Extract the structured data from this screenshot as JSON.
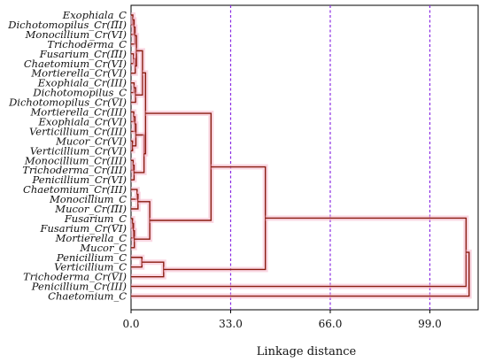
{
  "chart_data": {
    "type": "dendrogram",
    "orientation": "horizontal",
    "title": "",
    "xlabel": "Linkage distance",
    "xlim": [
      0,
      115
    ],
    "ticks": [
      0.0,
      33.0,
      66.0,
      99.0
    ],
    "tick_labels": [
      "0.0",
      "33.0",
      "66.0",
      "99.0"
    ],
    "cut_lines": [
      33.0,
      66.0,
      99.0
    ],
    "cut_line_color": "#8a2be2",
    "link_color": "#8a1c10",
    "leaves": [
      "Exophiala_C",
      "Dichotomopilus_Cr(III)",
      "Monocillium_Cr(VI)",
      "Trichoderma_C",
      "Fusarium_Cr(III)",
      "Chaetomium_Cr(VI)",
      "Mortierella_Cr(VI)",
      "Exophiala_Cr(III)",
      "Dichotomopilus_C",
      "Dichotomopilus_Cr(VI)",
      "Mortierella_Cr(III)",
      "Exophiala_Cr(VI)",
      "Verticillium_Cr(III)",
      "Mucor_Cr(VI)",
      "Verticillium_Cr(VI)",
      "Monocillium_Cr(III)",
      "Trichoderma_Cr(III)",
      "Penicillium_Cr(VI)",
      "Chaetomium_Cr(III)",
      "Monocillium_C",
      "Mucor_Cr(III)",
      "Fusarium_C",
      "Fusarium_Cr(VI)",
      "Mortierella_C",
      "Mucor_C",
      "Penicillium_C",
      "Verticillium_C",
      "Trichoderma_Cr(VI)",
      "Penicillium_Cr(III)",
      "Chaetomium_C"
    ],
    "merges": [
      {
        "a": 0,
        "b": 1,
        "height": 0.6
      },
      {
        "a": 30,
        "b": 2,
        "height": 1.0
      },
      {
        "a": 31,
        "b": 3,
        "height": 1.3
      },
      {
        "a": 4,
        "b": 5,
        "height": 0.8
      },
      {
        "a": 33,
        "b": 6,
        "height": 1.4
      },
      {
        "a": 32,
        "b": 34,
        "height": 1.8
      },
      {
        "a": 7,
        "b": 8,
        "height": 1.0
      },
      {
        "a": 36,
        "b": 9,
        "height": 1.5
      },
      {
        "a": 35,
        "b": 37,
        "height": 3.8
      },
      {
        "a": 10,
        "b": 11,
        "height": 0.9
      },
      {
        "a": 39,
        "b": 12,
        "height": 1.3
      },
      {
        "a": 13,
        "b": 14,
        "height": 0.5
      },
      {
        "a": 40,
        "b": 41,
        "height": 1.6
      },
      {
        "a": 15,
        "b": 16,
        "height": 0.7
      },
      {
        "a": 43,
        "b": 17,
        "height": 1.0
      },
      {
        "a": 42,
        "b": 44,
        "height": 4.3
      },
      {
        "a": 38,
        "b": 45,
        "height": 4.8
      },
      {
        "a": 18,
        "b": 19,
        "height": 2.0
      },
      {
        "a": 47,
        "b": 20,
        "height": 2.3
      },
      {
        "a": 21,
        "b": 22,
        "height": 0.5
      },
      {
        "a": 49,
        "b": 23,
        "height": 0.8
      },
      {
        "a": 50,
        "b": 24,
        "height": 1.1
      },
      {
        "a": 48,
        "b": 51,
        "height": 6.2
      },
      {
        "a": 46,
        "b": 52,
        "height": 26.5
      },
      {
        "a": 25,
        "b": 26,
        "height": 3.6
      },
      {
        "a": 54,
        "b": 27,
        "height": 10.8
      },
      {
        "a": 53,
        "b": 55,
        "height": 44.5
      },
      {
        "a": 56,
        "b": 28,
        "height": 111.0
      },
      {
        "a": 57,
        "b": 29,
        "height": 112.0
      }
    ]
  }
}
